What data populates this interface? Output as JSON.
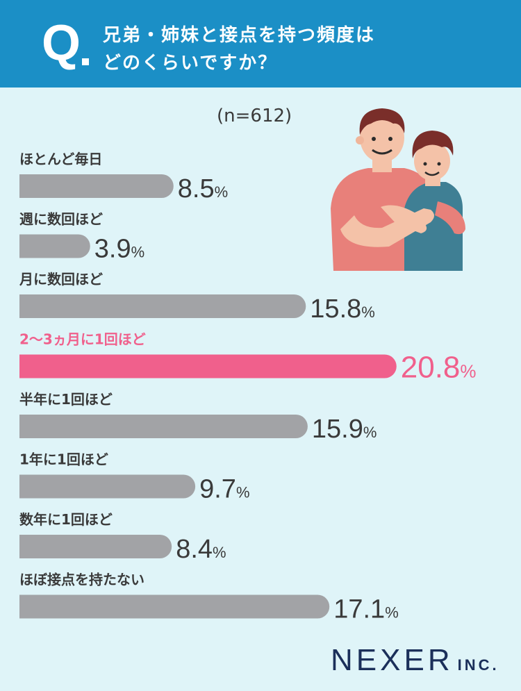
{
  "header": {
    "q_mark": "Q",
    "question_line1": "兄弟・姉妹と接点を持つ頻度は",
    "question_line2": "どのくらいですか？"
  },
  "sample_size": "(n=612)",
  "brand": {
    "main": "NEXER",
    "sub": "INC."
  },
  "colors": {
    "header_bg": "#1b8fc6",
    "background": "#dff4f8",
    "bar_default": "#a2a3a6",
    "bar_highlight": "#f0608c",
    "text_default": "#3a3a3a",
    "brand": "#1b2f5a"
  },
  "icons": {
    "illustration": "hugging-man-and-boy-illustration"
  },
  "chart_data": {
    "type": "bar",
    "orientation": "horizontal",
    "unit": "%",
    "categories": [
      "ほとんど毎日",
      "週に数回ほど",
      "月に数回ほど",
      "2〜3ヵ月に1回ほど",
      "半年に1回ほど",
      "1年に1回ほど",
      "数年に1回ほど",
      "ほぼ接点を持たない"
    ],
    "values": [
      8.5,
      3.9,
      15.8,
      20.8,
      15.9,
      9.7,
      8.4,
      17.1
    ],
    "highlight_index": 3,
    "xlim": [
      0,
      21
    ]
  }
}
